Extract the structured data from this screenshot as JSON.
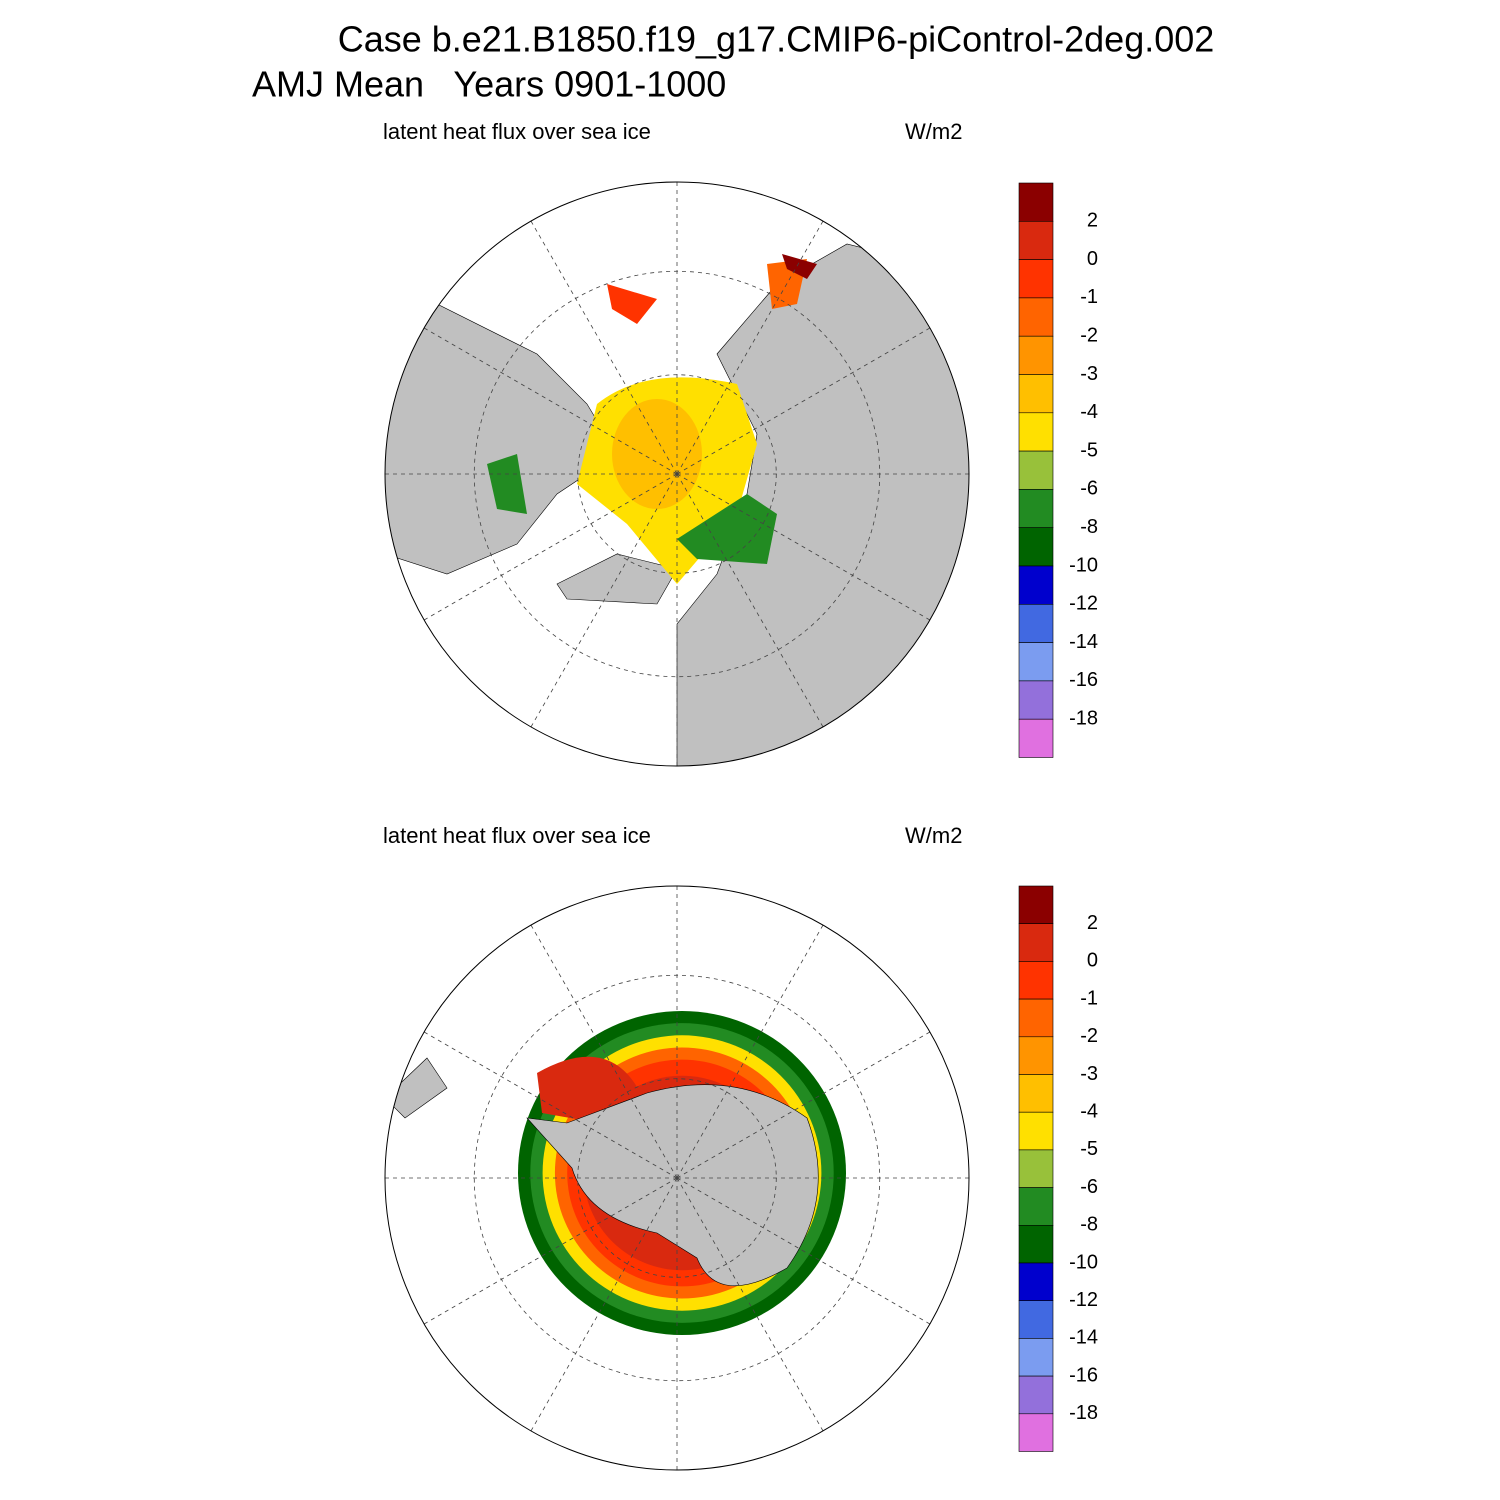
{
  "title": [
    "Case b.e21.B1850.f19_g17.CMIP6-piControl-2deg.002",
    "AMJ Mean   Years 0901-1000"
  ],
  "panels": [
    {
      "label": "latent heat flux over sea ice",
      "units": "W/m2",
      "hemisphere": "north",
      "colorbar": {
        "levels": [
          2,
          0,
          -1,
          -2,
          -3,
          -4,
          -5,
          -6,
          -8,
          -10,
          -12,
          -14,
          -16,
          -18
        ],
        "colors": [
          "#8b0000",
          "#d9290f",
          "#ff3300",
          "#ff6400",
          "#ff9400",
          "#ffbf00",
          "#ffe000",
          "#98c13a",
          "#228b22",
          "#006400",
          "#0000cd",
          "#4169e1",
          "#7b9cf0",
          "#9370db",
          "#e070e0"
        ]
      }
    },
    {
      "label": "latent heat flux over sea ice",
      "units": "W/m2",
      "hemisphere": "south",
      "colorbar": {
        "levels": [
          2,
          0,
          -1,
          -2,
          -3,
          -4,
          -5,
          -6,
          -8,
          -10,
          -12,
          -14,
          -16,
          -18
        ],
        "colors": [
          "#8b0000",
          "#d9290f",
          "#ff3300",
          "#ff6400",
          "#ff9400",
          "#ffbf00",
          "#ffe000",
          "#98c13a",
          "#228b22",
          "#006400",
          "#0000cd",
          "#4169e1",
          "#7b9cf0",
          "#9370db",
          "#e070e0"
        ]
      }
    }
  ]
}
